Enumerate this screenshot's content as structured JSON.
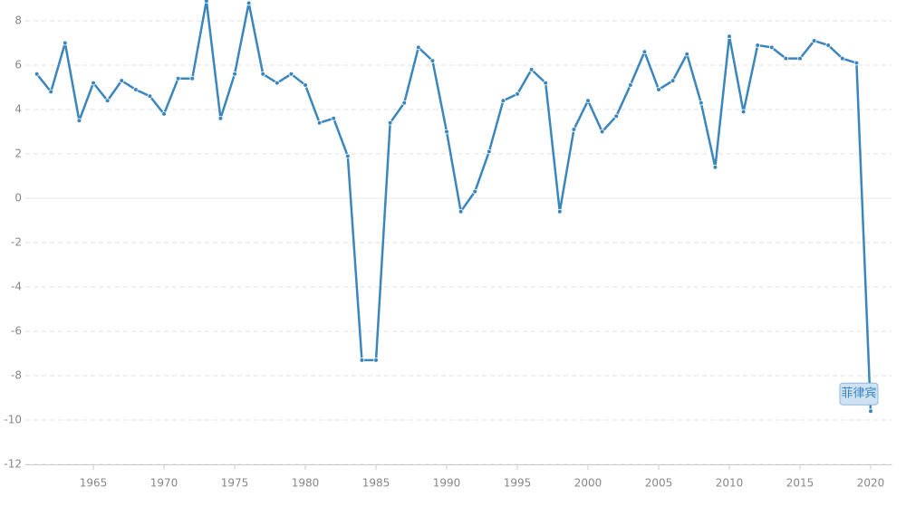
{
  "chart_data": {
    "type": "line",
    "x": [
      1961,
      1962,
      1963,
      1964,
      1965,
      1966,
      1967,
      1968,
      1969,
      1970,
      1971,
      1972,
      1973,
      1974,
      1975,
      1976,
      1977,
      1978,
      1979,
      1980,
      1981,
      1982,
      1983,
      1984,
      1985,
      1986,
      1987,
      1988,
      1989,
      1990,
      1991,
      1992,
      1993,
      1994,
      1995,
      1996,
      1997,
      1998,
      1999,
      2000,
      2001,
      2002,
      2003,
      2004,
      2005,
      2006,
      2007,
      2008,
      2009,
      2010,
      2011,
      2012,
      2013,
      2014,
      2015,
      2016,
      2017,
      2018,
      2019,
      2020
    ],
    "series": [
      {
        "name": "菲律宾",
        "color": "#3a86bd",
        "values": [
          5.6,
          4.8,
          7.0,
          3.5,
          5.2,
          4.4,
          5.3,
          4.9,
          4.6,
          3.8,
          5.4,
          5.4,
          8.9,
          3.6,
          5.6,
          8.8,
          5.6,
          5.2,
          5.6,
          5.1,
          3.4,
          3.6,
          1.9,
          -7.3,
          -7.3,
          3.4,
          4.3,
          6.8,
          6.2,
          3.0,
          -0.6,
          0.3,
          2.1,
          4.4,
          4.7,
          5.8,
          5.2,
          -0.6,
          3.1,
          4.4,
          3.0,
          3.7,
          5.1,
          6.6,
          4.9,
          5.3,
          6.5,
          4.3,
          1.4,
          7.3,
          3.9,
          6.9,
          6.8,
          6.3,
          6.3,
          7.1,
          6.9,
          6.3,
          6.1,
          -9.6
        ]
      }
    ],
    "xlim": [
      1960.6,
      2021.5
    ],
    "xticks": [
      1965,
      1970,
      1975,
      1980,
      1985,
      1990,
      1995,
      2000,
      2005,
      2010,
      2015,
      2020
    ],
    "ylim": [
      -12,
      9
    ],
    "yticks": [
      -12,
      -10,
      -8,
      -6,
      -4,
      -2,
      0,
      2,
      4,
      6,
      8
    ],
    "grid": true
  }
}
